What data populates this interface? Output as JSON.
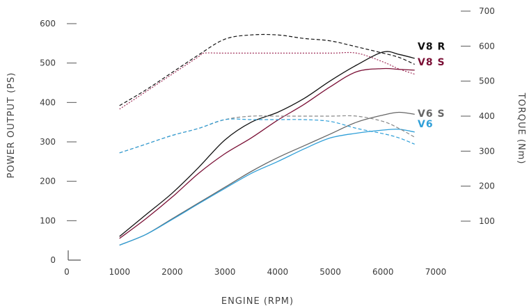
{
  "chart_data": {
    "type": "line",
    "xlabel": "ENGINE (RPM)",
    "ylabel": "POWER OUTPUT (PS)",
    "y2label": "TORQUE (Nm)",
    "xlim": [
      0,
      7000
    ],
    "xticks": [
      0,
      1000,
      2000,
      3000,
      4000,
      5000,
      6000,
      7000
    ],
    "ylim": [
      0,
      650
    ],
    "yticks": [
      0,
      100,
      200,
      300,
      400,
      500,
      600
    ],
    "y2lim": [
      100,
      700
    ],
    "y2ticks": [
      100,
      200,
      300,
      400,
      500,
      600,
      700
    ],
    "grid": false,
    "legend": "inline labels at right end of curves",
    "series": [
      {
        "name": "V8 R",
        "metric": "power",
        "axis": "left",
        "style": "solid",
        "color": "#111111",
        "x": [
          1000,
          1500,
          2000,
          2500,
          3000,
          3500,
          4000,
          4500,
          5000,
          5500,
          6000,
          6300,
          6600
        ],
        "y": [
          60,
          115,
          170,
          235,
          305,
          350,
          375,
          410,
          455,
          495,
          528,
          522,
          512
        ]
      },
      {
        "name": "V8 S",
        "metric": "power",
        "axis": "left",
        "style": "solid",
        "color": "#7a0f35",
        "x": [
          1000,
          1500,
          2000,
          2500,
          3000,
          3500,
          4000,
          4500,
          5000,
          5500,
          6000,
          6300,
          6600
        ],
        "y": [
          55,
          105,
          160,
          220,
          270,
          310,
          355,
          395,
          440,
          478,
          486,
          484,
          482
        ]
      },
      {
        "name": "V6 S",
        "metric": "power",
        "axis": "left",
        "style": "solid",
        "color": "#666666",
        "x": [
          1000,
          1500,
          2000,
          2500,
          3000,
          3500,
          4000,
          4500,
          5000,
          5500,
          6000,
          6300,
          6600
        ],
        "y": [
          38,
          65,
          105,
          145,
          185,
          225,
          260,
          290,
          320,
          350,
          368,
          375,
          370
        ]
      },
      {
        "name": "V6",
        "metric": "power",
        "axis": "left",
        "style": "solid",
        "color": "#2f9fd8",
        "x": [
          1000,
          1500,
          2000,
          2500,
          3000,
          3500,
          4000,
          4500,
          5000,
          5500,
          6000,
          6300,
          6600
        ],
        "y": [
          38,
          65,
          103,
          143,
          182,
          220,
          250,
          282,
          310,
          322,
          330,
          332,
          325
        ]
      },
      {
        "name": "V8 R",
        "metric": "torque",
        "axis": "right",
        "style": "dashed",
        "color": "#111111",
        "x": [
          1000,
          1500,
          2000,
          2500,
          3000,
          3500,
          4000,
          4500,
          5000,
          5500,
          6000,
          6300,
          6600
        ],
        "y": [
          430,
          475,
          525,
          575,
          620,
          632,
          632,
          622,
          615,
          598,
          580,
          568,
          548
        ]
      },
      {
        "name": "V8 S",
        "metric": "torque",
        "axis": "right",
        "style": "dotted",
        "color": "#a0305a",
        "x": [
          1000,
          1500,
          2000,
          2500,
          2600,
          3000,
          4000,
          5000,
          5500,
          6000,
          6300,
          6600
        ],
        "y": [
          420,
          470,
          520,
          570,
          580,
          580,
          580,
          580,
          580,
          555,
          535,
          520
        ]
      },
      {
        "name": "V6 S",
        "metric": "torque",
        "axis": "right",
        "style": "dashed",
        "color": "#888888",
        "x": [
          1000,
          1500,
          2000,
          2500,
          3000,
          3500,
          4000,
          4500,
          5000,
          5500,
          6000,
          6300,
          6600
        ],
        "y": [
          295,
          320,
          345,
          365,
          390,
          400,
          400,
          400,
          400,
          400,
          385,
          365,
          340
        ]
      },
      {
        "name": "V6",
        "metric": "torque",
        "axis": "right",
        "style": "dashed",
        "color": "#2f9fd8",
        "x": [
          1000,
          1500,
          2000,
          2500,
          3000,
          3500,
          4000,
          4500,
          5000,
          5500,
          6000,
          6300,
          6600
        ],
        "y": [
          295,
          320,
          345,
          365,
          390,
          390,
          390,
          390,
          385,
          365,
          350,
          338,
          320
        ]
      }
    ],
    "labels": [
      {
        "text": "V8 R",
        "color": "#111111",
        "y_data": 600,
        "axis": "right"
      },
      {
        "text": "V8 S",
        "color": "#7a0f35",
        "y_data": 555,
        "axis": "right"
      },
      {
        "text": "V6 S",
        "color": "#666666",
        "y_data": 408,
        "axis": "right"
      },
      {
        "text": "V6",
        "color": "#2f9fd8",
        "y_data": 378,
        "axis": "right"
      }
    ]
  }
}
